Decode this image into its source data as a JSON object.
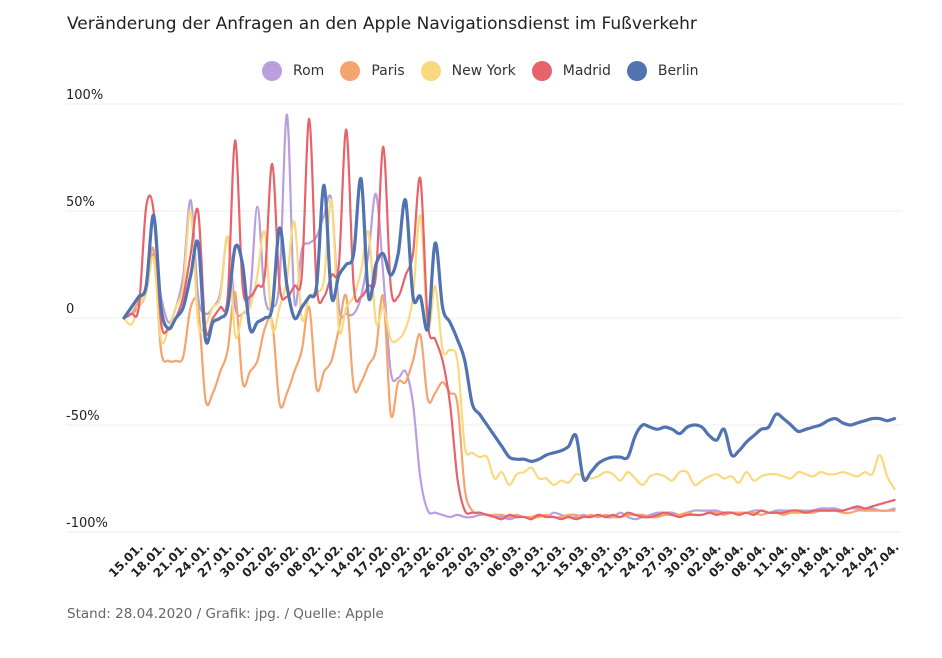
{
  "title": "Veränderung der Anfragen an den Apple Navigationsdienst im Fußverkehr",
  "source": "Stand: 28.04.2020 / Grafik: jpg. / Quelle: Apple",
  "chart_data": {
    "type": "line",
    "title": "Veränderung der Anfragen an den Apple Navigationsdienst im Fußverkehr",
    "ylim": [
      -100,
      100
    ],
    "yticks": [
      100,
      50,
      0,
      -50,
      -100
    ],
    "ytick_labels": [
      "100%",
      "50%",
      "0",
      "-50%",
      "-100%"
    ],
    "grid": true,
    "legend_position": "top",
    "xticks": [
      "15.01.",
      "18.01.",
      "21.01.",
      "24.01.",
      "27.01.",
      "30.01.",
      "02.02.",
      "05.02.",
      "08.02.",
      "11.02.",
      "14.02.",
      "17.02.",
      "20.02.",
      "23.02.",
      "26.02.",
      "29.02.",
      "03.03.",
      "06.03.",
      "09.03.",
      "12.03.",
      "15.03.",
      "18.03.",
      "21.03.",
      "24.03.",
      "27.03.",
      "30.03.",
      "02.04.",
      "05.04.",
      "08.04.",
      "11.04.",
      "15.04.",
      "18.04.",
      "21.04.",
      "24.04.",
      "27.04."
    ],
    "x_start": "2020-01-13",
    "x_end": "2020-04-27",
    "series": [
      {
        "name": "Rom",
        "color": "#b99fde",
        "values": [
          0,
          2,
          5,
          12,
          30,
          10,
          -2,
          5,
          20,
          55,
          10,
          2,
          5,
          12,
          38,
          5,
          2,
          10,
          52,
          10,
          5,
          18,
          95,
          8,
          32,
          35,
          38,
          48,
          55,
          5,
          2,
          2,
          10,
          30,
          58,
          20,
          -25,
          -28,
          -25,
          -40,
          -75,
          -90,
          -91,
          -92,
          -93,
          -92,
          -93,
          -93,
          -92,
          -92,
          -93,
          -93,
          -94,
          -93,
          -93,
          -93,
          -92,
          -93,
          -91,
          -92,
          -93,
          -93,
          -92,
          -93,
          -92,
          -93,
          -93,
          -91,
          -93,
          -94,
          -93,
          -92,
          -91,
          -91,
          -91,
          -92,
          -91,
          -90,
          -90,
          -90,
          -90,
          -91,
          -91,
          -91,
          -91,
          -90,
          -90,
          -91,
          -90,
          -90,
          -90,
          -90,
          -90,
          -90,
          -89,
          -89,
          -89,
          -90,
          -89,
          -89,
          -89,
          -89,
          -90,
          -90,
          -89
        ]
      },
      {
        "name": "Paris",
        "color": "#f5a46e",
        "values": [
          0,
          2,
          8,
          15,
          32,
          -15,
          -20,
          -20,
          -18,
          5,
          5,
          -38,
          -35,
          -25,
          -15,
          12,
          -30,
          -25,
          -20,
          -5,
          -2,
          -40,
          -35,
          -25,
          -15,
          5,
          -33,
          -25,
          -20,
          -5,
          10,
          -32,
          -30,
          -22,
          -15,
          10,
          -45,
          -30,
          -30,
          -20,
          -8,
          -38,
          -35,
          -30,
          -35,
          -40,
          -80,
          -90,
          -91,
          -92,
          -92,
          -92,
          -93,
          -92,
          -93,
          -93,
          -93,
          -92,
          -93,
          -93,
          -92,
          -92,
          -93,
          -92,
          -93,
          -92,
          -93,
          -93,
          -92,
          -92,
          -92,
          -93,
          -93,
          -92,
          -92,
          -92,
          -91,
          -92,
          -92,
          -91,
          -91,
          -92,
          -91,
          -91,
          -91,
          -91,
          -92,
          -91,
          -91,
          -92,
          -91,
          -91,
          -91,
          -91,
          -90,
          -90,
          -90,
          -91,
          -91,
          -90,
          -90,
          -90,
          -90,
          -90,
          -90
        ]
      },
      {
        "name": "New York",
        "color": "#fad97e",
        "values": [
          0,
          -3,
          5,
          12,
          28,
          -10,
          -5,
          5,
          15,
          50,
          -2,
          -3,
          5,
          10,
          38,
          -8,
          2,
          5,
          20,
          40,
          -5,
          5,
          18,
          45,
          0,
          10,
          12,
          18,
          55,
          -5,
          5,
          10,
          22,
          40,
          -2,
          5,
          -10,
          -10,
          -5,
          10,
          48,
          -5,
          15,
          -15,
          -15,
          -20,
          -60,
          -63,
          -65,
          -65,
          -75,
          -72,
          -78,
          -73,
          -72,
          -70,
          -75,
          -75,
          -78,
          -76,
          -77,
          -73,
          -74,
          -75,
          -74,
          -72,
          -73,
          -76,
          -72,
          -75,
          -78,
          -74,
          -73,
          -74,
          -76,
          -72,
          -72,
          -78,
          -76,
          -74,
          -73,
          -75,
          -74,
          -77,
          -72,
          -76,
          -74,
          -73,
          -73,
          -74,
          -75,
          -72,
          -73,
          -74,
          -72,
          -73,
          -73,
          -72,
          -73,
          -74,
          -72,
          -73,
          -64,
          -74,
          -80
        ]
      },
      {
        "name": "Madrid",
        "color": "#e8626a",
        "values": [
          0,
          2,
          5,
          52,
          50,
          -2,
          -5,
          0,
          10,
          30,
          50,
          -5,
          0,
          5,
          10,
          83,
          15,
          10,
          15,
          20,
          72,
          15,
          10,
          15,
          20,
          93,
          15,
          10,
          20,
          25,
          88,
          15,
          10,
          15,
          20,
          80,
          15,
          10,
          20,
          30,
          65,
          -2,
          -10,
          -20,
          -40,
          -75,
          -90,
          -91,
          -91,
          -92,
          -93,
          -94,
          -92,
          -93,
          -93,
          -94,
          -92,
          -93,
          -93,
          -94,
          -93,
          -94,
          -93,
          -93,
          -92,
          -93,
          -92,
          -93,
          -91,
          -92,
          -93,
          -93,
          -92,
          -91,
          -92,
          -93,
          -92,
          -92,
          -92,
          -91,
          -92,
          -91,
          -91,
          -92,
          -91,
          -92,
          -90,
          -91,
          -91,
          -91,
          -90,
          -90,
          -91,
          -90,
          -90,
          -90,
          -90,
          -90,
          -89,
          -88,
          -89,
          -88,
          -87,
          -86,
          -85
        ]
      },
      {
        "name": "Berlin",
        "color": "#5173b1",
        "values": [
          0,
          5,
          10,
          15,
          48,
          5,
          -5,
          0,
          5,
          20,
          35,
          -10,
          -2,
          0,
          5,
          33,
          25,
          -5,
          -2,
          0,
          5,
          42,
          15,
          0,
          5,
          10,
          15,
          62,
          10,
          20,
          25,
          30,
          65,
          10,
          25,
          30,
          20,
          30,
          55,
          10,
          10,
          -5,
          35,
          5,
          -2,
          -10,
          -20,
          -40,
          -45,
          -50,
          -55,
          -60,
          -65,
          -66,
          -66,
          -67,
          -66,
          -64,
          -63,
          -62,
          -60,
          -55,
          -75,
          -72,
          -68,
          -66,
          -65,
          -65,
          -65,
          -55,
          -50,
          -51,
          -52,
          -51,
          -52,
          -54,
          -51,
          -50,
          -51,
          -55,
          -57,
          -52,
          -64,
          -62,
          -58,
          -55,
          -52,
          -51,
          -45,
          -47,
          -50,
          -53,
          -52,
          -51,
          -50,
          -48,
          -47,
          -49,
          -50,
          -49,
          -48,
          -47,
          -47,
          -48,
          -47
        ]
      }
    ]
  }
}
